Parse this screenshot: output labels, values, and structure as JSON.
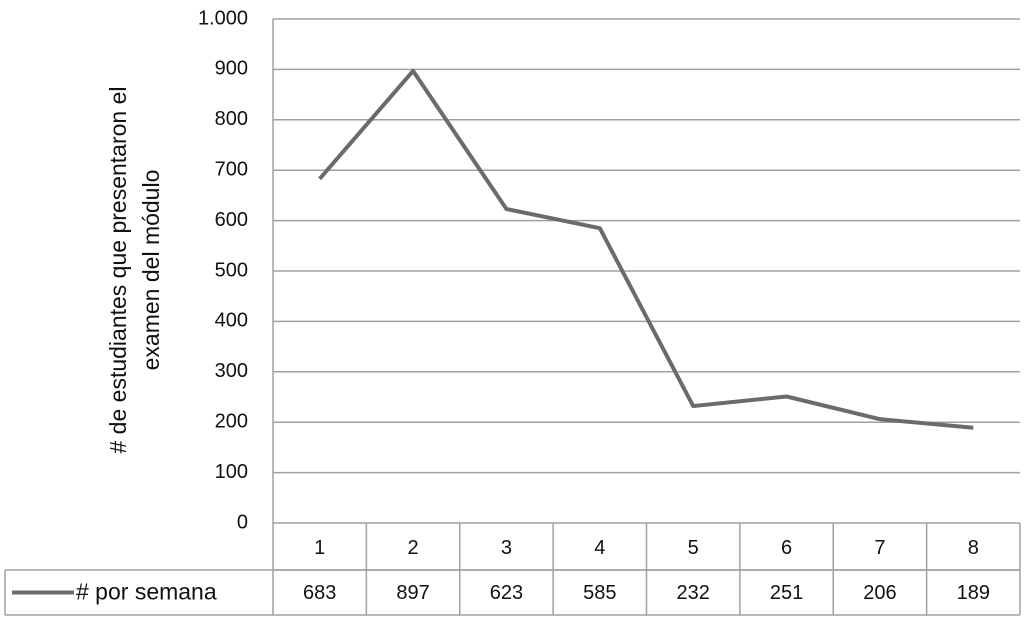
{
  "chart_data": {
    "type": "line",
    "ylabel": [
      "# de estudiantes que presentaron el",
      "examen del módulo"
    ],
    "categories": [
      "1",
      "2",
      "3",
      "4",
      "5",
      "6",
      "7",
      "8"
    ],
    "series": [
      {
        "name": "# por semana",
        "color": "#6b6b6b",
        "values": [
          683,
          897,
          623,
          585,
          232,
          251,
          206,
          189
        ]
      }
    ],
    "ylim": [
      0,
      1000
    ],
    "yticks": [
      0,
      100,
      200,
      300,
      400,
      500,
      600,
      700,
      800,
      900,
      {
        "value": 1000,
        "label": "1.000"
      }
    ],
    "grid": true,
    "legend": "data-table"
  }
}
